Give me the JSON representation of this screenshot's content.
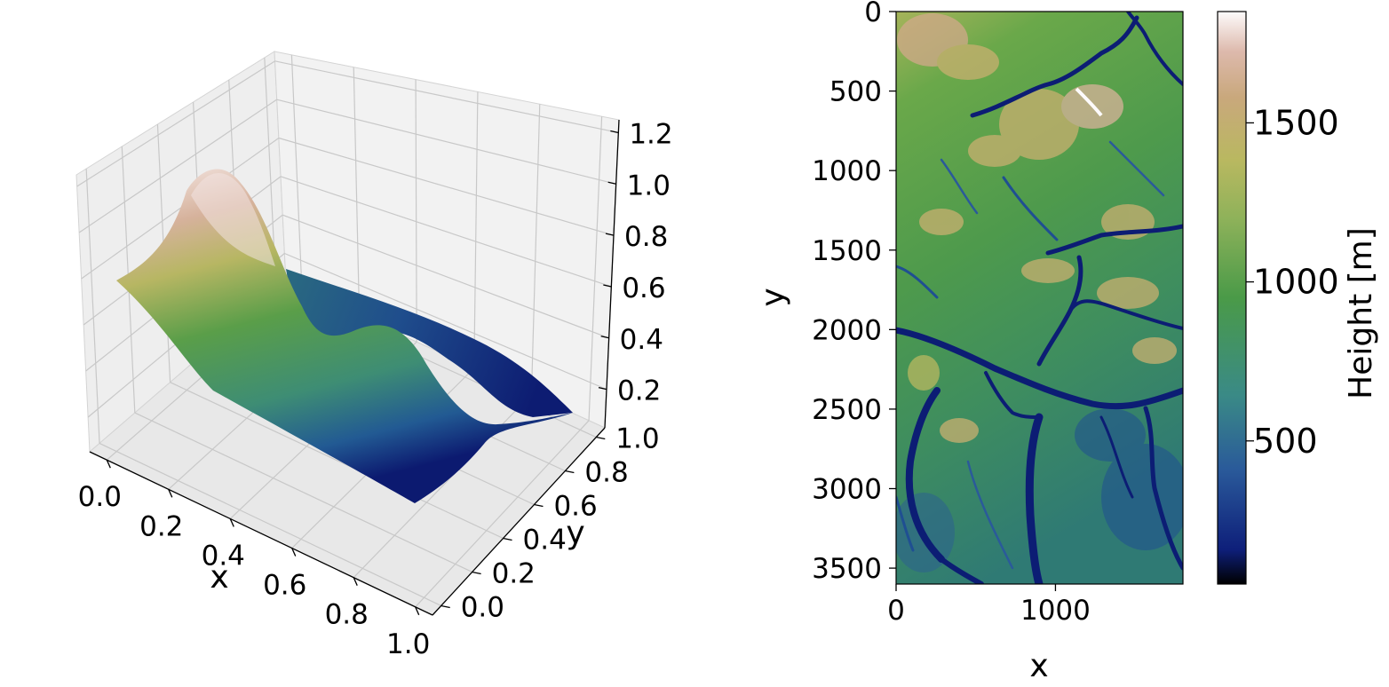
{
  "chart_data": [
    {
      "type": "surface",
      "xlabel": "x",
      "ylabel": "y",
      "x_ticks": [
        "0.0",
        "0.2",
        "0.4",
        "0.6",
        "0.8",
        "1.0"
      ],
      "y_ticks": [
        "0.0",
        "0.2",
        "0.4",
        "0.6",
        "0.8",
        "1.0"
      ],
      "z_ticks": [
        "0.2",
        "0.4",
        "0.6",
        "0.8",
        "1.0",
        "1.2"
      ],
      "xlim": [
        0,
        1
      ],
      "ylim": [
        0,
        1
      ],
      "zlim": [
        0.05,
        1.25
      ],
      "grid": true,
      "colormap": "gist_earth",
      "profile": {
        "x": [
          0.0,
          0.1,
          0.2,
          0.3,
          0.4,
          0.5,
          0.6,
          0.7,
          0.8,
          0.9,
          1.0
        ],
        "z_front": [
          0.62,
          0.68,
          0.92,
          1.22,
          0.95,
          0.62,
          0.55,
          0.6,
          0.4,
          0.16,
          0.1
        ],
        "z_back": [
          0.62,
          0.62,
          0.62,
          0.6,
          0.55,
          0.45,
          0.35,
          0.28,
          0.2,
          0.15,
          0.1
        ]
      }
    },
    {
      "type": "heatmap",
      "xlabel": "x",
      "ylabel": "y",
      "x_ticks": [
        "0",
        "1000"
      ],
      "y_ticks": [
        "0",
        "500",
        "1000",
        "1500",
        "2000",
        "2500",
        "3000",
        "3500"
      ],
      "xlim": [
        0,
        1800
      ],
      "ylim": [
        3600,
        0
      ],
      "colormap": "gist_earth",
      "colorbar": {
        "label": "Height [m]",
        "ticks": [
          "500",
          "1000",
          "1500"
        ],
        "range": [
          50,
          1850
        ]
      }
    }
  ]
}
